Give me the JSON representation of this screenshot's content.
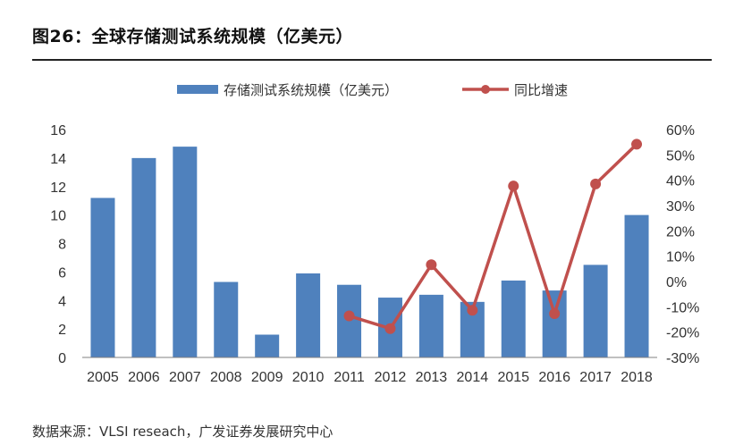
{
  "figure": {
    "title": "图26：全球存储测试系统规模（亿美元）",
    "source": "数据来源：VLSI reseach，广发证券发展研究中心"
  },
  "colors": {
    "bar": "#4F81BD",
    "line": "#C0504D",
    "axis": "#808080",
    "text": "#333333"
  },
  "chart_data": {
    "type": "bar",
    "categories": [
      "2005",
      "2006",
      "2007",
      "2008",
      "2009",
      "2010",
      "2011",
      "2012",
      "2013",
      "2014",
      "2015",
      "2016",
      "2017",
      "2018"
    ],
    "series": [
      {
        "name": "存储测试系统规模（亿美元）",
        "type": "bar",
        "axis": "left",
        "values": [
          11.2,
          14.0,
          14.8,
          5.3,
          1.6,
          5.9,
          5.1,
          4.2,
          4.4,
          3.9,
          5.4,
          4.7,
          6.5,
          10.0
        ]
      },
      {
        "name": "同比增速",
        "type": "line",
        "axis": "right",
        "values": [
          null,
          null,
          null,
          null,
          null,
          null,
          -13.6,
          -18.6,
          6.6,
          -11.4,
          37.7,
          -12.7,
          38.5,
          54.2
        ]
      }
    ],
    "y_left": {
      "min": 0,
      "max": 16,
      "ticks": [
        "0",
        "2",
        "4",
        "6",
        "8",
        "10",
        "12",
        "14",
        "16"
      ],
      "tick_values": [
        0,
        2,
        4,
        6,
        8,
        10,
        12,
        14,
        16
      ]
    },
    "y_right": {
      "min": -30,
      "max": 60,
      "ticks": [
        "-30%",
        "-20%",
        "-10%",
        "0%",
        "10%",
        "20%",
        "30%",
        "40%",
        "50%",
        "60%"
      ],
      "tick_values": [
        -30,
        -20,
        -10,
        0,
        10,
        20,
        30,
        40,
        50,
        60
      ]
    },
    "legend": "top-center",
    "grid": false
  }
}
